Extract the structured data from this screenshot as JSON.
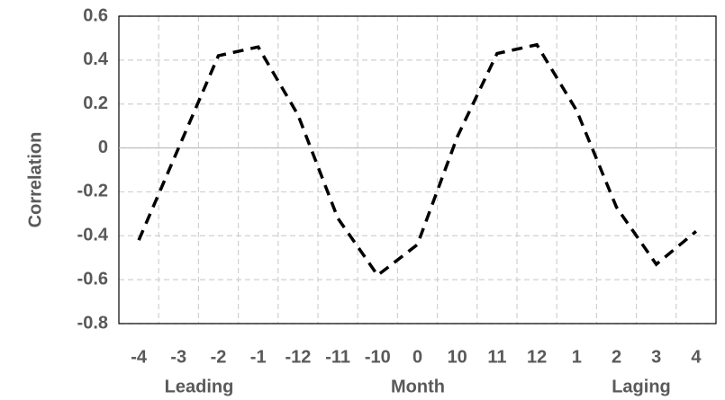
{
  "chart_data": {
    "type": "line",
    "y_label": "Correlation",
    "x_label": "Month",
    "annotations": [
      "Leading",
      "Laging"
    ],
    "categories": [
      "-4",
      "-3",
      "-2",
      "-1",
      "-12",
      "-11",
      "-10",
      "0",
      "10",
      "11",
      "12",
      "1",
      "2",
      "3",
      "4"
    ],
    "series": [
      {
        "name": "Correlation",
        "color": "#000000",
        "values": [
          -0.42,
          0.0,
          0.42,
          0.46,
          0.15,
          -0.32,
          -0.58,
          -0.44,
          0.05,
          0.43,
          0.47,
          0.17,
          -0.27,
          -0.53,
          -0.38
        ]
      }
    ],
    "ylim": [
      -0.8,
      0.6
    ],
    "yticks": [
      -0.8,
      -0.6,
      -0.4,
      -0.2,
      0,
      0.2,
      0.4,
      0.6
    ],
    "grid": true
  }
}
